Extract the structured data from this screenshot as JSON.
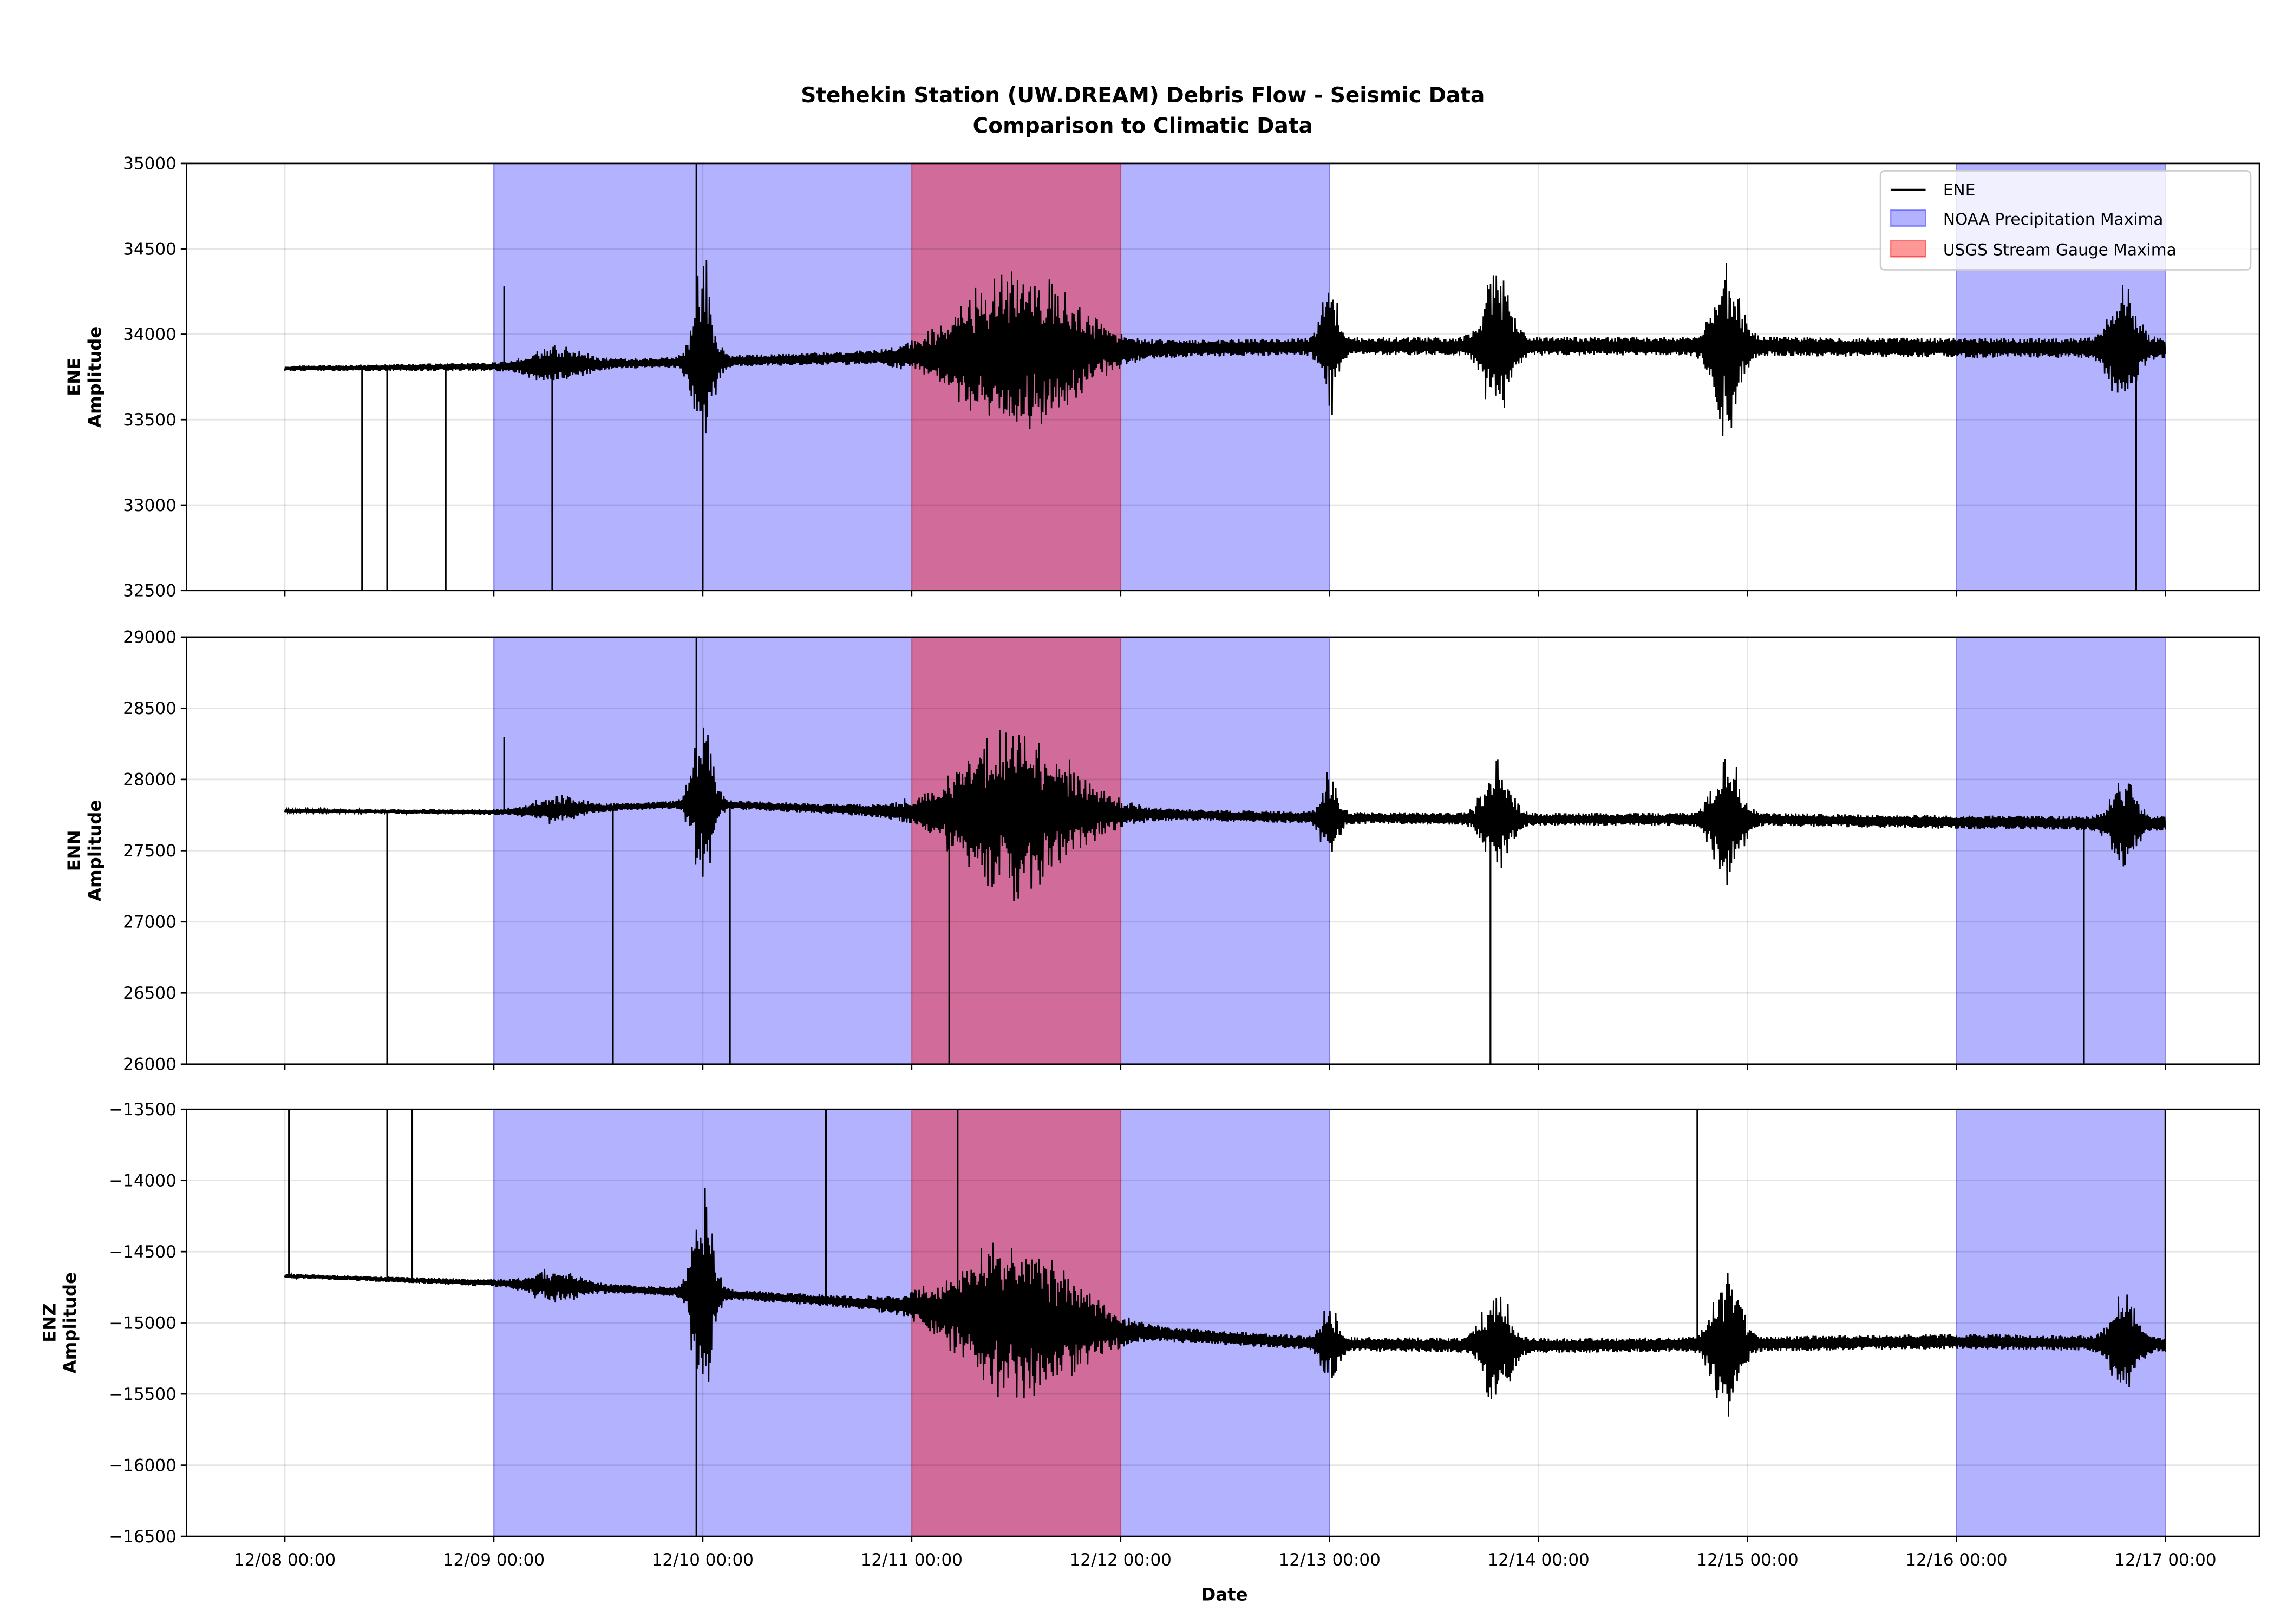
{
  "chart_data": {
    "type": "line",
    "title": "Stehekin Station (UW.DREAM) Debris Flow - Seismic Data",
    "subtitle": "Comparison to Climatic Data",
    "xlabel": "Date",
    "x_tick_labels": [
      "12/08 00:00",
      "12/09 00:00",
      "12/10 00:00",
      "12/11 00:00",
      "12/12 00:00",
      "12/13 00:00",
      "12/14 00:00",
      "12/15 00:00",
      "12/16 00:00",
      "12/17 00:00"
    ],
    "x_range_days_from_1208": [
      -0.47,
      9.45
    ],
    "data_range_days_from_1208": [
      0,
      9
    ],
    "grid": true,
    "legend": {
      "placement": "top-right",
      "entries": [
        "ENE",
        "NOAA Precipitation Maxima",
        "USGS Stream Gauge Maxima"
      ]
    },
    "colors": {
      "line": "#000000",
      "noaa": "#0000ff",
      "usgs": "#ff0000",
      "noaa_alpha": 0.3,
      "usgs_alpha": 0.4
    },
    "shaded_spans": {
      "noaa": [
        [
          "12/09 00:00",
          "12/13 00:00"
        ],
        [
          "12/16 00:00",
          "12/17 00:00"
        ]
      ],
      "usgs": [
        [
          "12/11 00:00",
          "12/12 00:00"
        ]
      ]
    },
    "panels": [
      {
        "name": "ENE",
        "ylabel": [
          "ENE",
          "Amplitude"
        ],
        "ylim": [
          32500,
          35000
        ],
        "yticks": [
          32500,
          33000,
          33500,
          34000,
          34500,
          35000
        ],
        "baseline": [
          [
            0,
            33800
          ],
          [
            1,
            33810
          ],
          [
            2,
            33840
          ],
          [
            3,
            33870
          ],
          [
            4,
            33910
          ],
          [
            5,
            33930
          ],
          [
            6,
            33930
          ],
          [
            7,
            33930
          ],
          [
            8,
            33920
          ],
          [
            9,
            33920
          ]
        ],
        "noise": [
          [
            0,
            15
          ],
          [
            1,
            25
          ],
          [
            3,
            40
          ],
          [
            4,
            50
          ],
          [
            9,
            60
          ]
        ],
        "bursts": [
          [
            2,
            0.06,
            650
          ],
          [
            3.5,
            0.35,
            520
          ],
          [
            5,
            0.05,
            400
          ],
          [
            5.8,
            0.08,
            480
          ],
          [
            6.9,
            0.08,
            560
          ],
          [
            8.8,
            0.08,
            380
          ],
          [
            1.3,
            0.15,
            110
          ]
        ],
        "spikes": [
          [
            0.37,
            32500
          ],
          [
            0.49,
            32500
          ],
          [
            0.77,
            32500
          ],
          [
            1.28,
            32500
          ],
          [
            8.86,
            32500
          ],
          [
            1.05,
            34280
          ],
          [
            1.97,
            35000
          ],
          [
            2.0,
            32500
          ]
        ]
      },
      {
        "name": "ENN",
        "ylabel": [
          "ENN",
          "Amplitude"
        ],
        "ylim": [
          26000,
          29000
        ],
        "yticks": [
          26000,
          26500,
          27000,
          27500,
          28000,
          28500,
          29000
        ],
        "baseline": [
          [
            0,
            27780
          ],
          [
            1,
            27770
          ],
          [
            2,
            27830
          ],
          [
            3,
            27770
          ],
          [
            4,
            27760
          ],
          [
            5,
            27730
          ],
          [
            6,
            27720
          ],
          [
            7,
            27720
          ],
          [
            8,
            27700
          ],
          [
            9,
            27690
          ]
        ],
        "noise": [
          [
            0,
            12
          ],
          [
            1,
            20
          ],
          [
            3,
            40
          ],
          [
            4,
            40
          ],
          [
            9,
            50
          ]
        ],
        "bursts": [
          [
            2,
            0.06,
            700
          ],
          [
            3.5,
            0.35,
            620
          ],
          [
            5,
            0.05,
            350
          ],
          [
            5.8,
            0.08,
            420
          ],
          [
            6.9,
            0.08,
            520
          ],
          [
            8.8,
            0.08,
            320
          ],
          [
            1.3,
            0.15,
            90
          ]
        ],
        "spikes": [
          [
            0.49,
            26000
          ],
          [
            1.57,
            26000
          ],
          [
            2.13,
            26000
          ],
          [
            3.18,
            26000
          ],
          [
            5.77,
            26000
          ],
          [
            8.61,
            26000
          ],
          [
            1.05,
            28300
          ],
          [
            1.97,
            29000
          ]
        ]
      },
      {
        "name": "ENZ",
        "ylabel": [
          "ENZ",
          "Amplitude"
        ],
        "ylim": [
          -16500,
          -13500
        ],
        "yticks": [
          -16500,
          -16000,
          -15500,
          -15000,
          -14500,
          -14000,
          -13500
        ],
        "baseline": [
          [
            0,
            -14670
          ],
          [
            1,
            -14720
          ],
          [
            2,
            -14790
          ],
          [
            3,
            -14880
          ],
          [
            3.5,
            -14960
          ],
          [
            4,
            -15060
          ],
          [
            5,
            -15150
          ],
          [
            6,
            -15160
          ],
          [
            7,
            -15150
          ],
          [
            8,
            -15130
          ],
          [
            9,
            -15150
          ]
        ],
        "noise": [
          [
            0,
            15
          ],
          [
            1,
            25
          ],
          [
            3,
            45
          ],
          [
            4,
            50
          ],
          [
            9,
            55
          ]
        ],
        "bursts": [
          [
            2,
            0.06,
            900
          ],
          [
            3.5,
            0.35,
            620
          ],
          [
            5,
            0.05,
            300
          ],
          [
            5.8,
            0.08,
            450
          ],
          [
            6.9,
            0.08,
            600
          ],
          [
            8.8,
            0.08,
            350
          ],
          [
            1.3,
            0.15,
            110
          ]
        ],
        "spikes": [
          [
            0.02,
            -13500
          ],
          [
            0.49,
            -13500
          ],
          [
            0.61,
            -13500
          ],
          [
            2.59,
            -13500
          ],
          [
            3.22,
            -13500
          ],
          [
            6.76,
            -13500
          ],
          [
            9.0,
            -13500
          ],
          [
            1.97,
            -16500
          ]
        ]
      }
    ]
  }
}
